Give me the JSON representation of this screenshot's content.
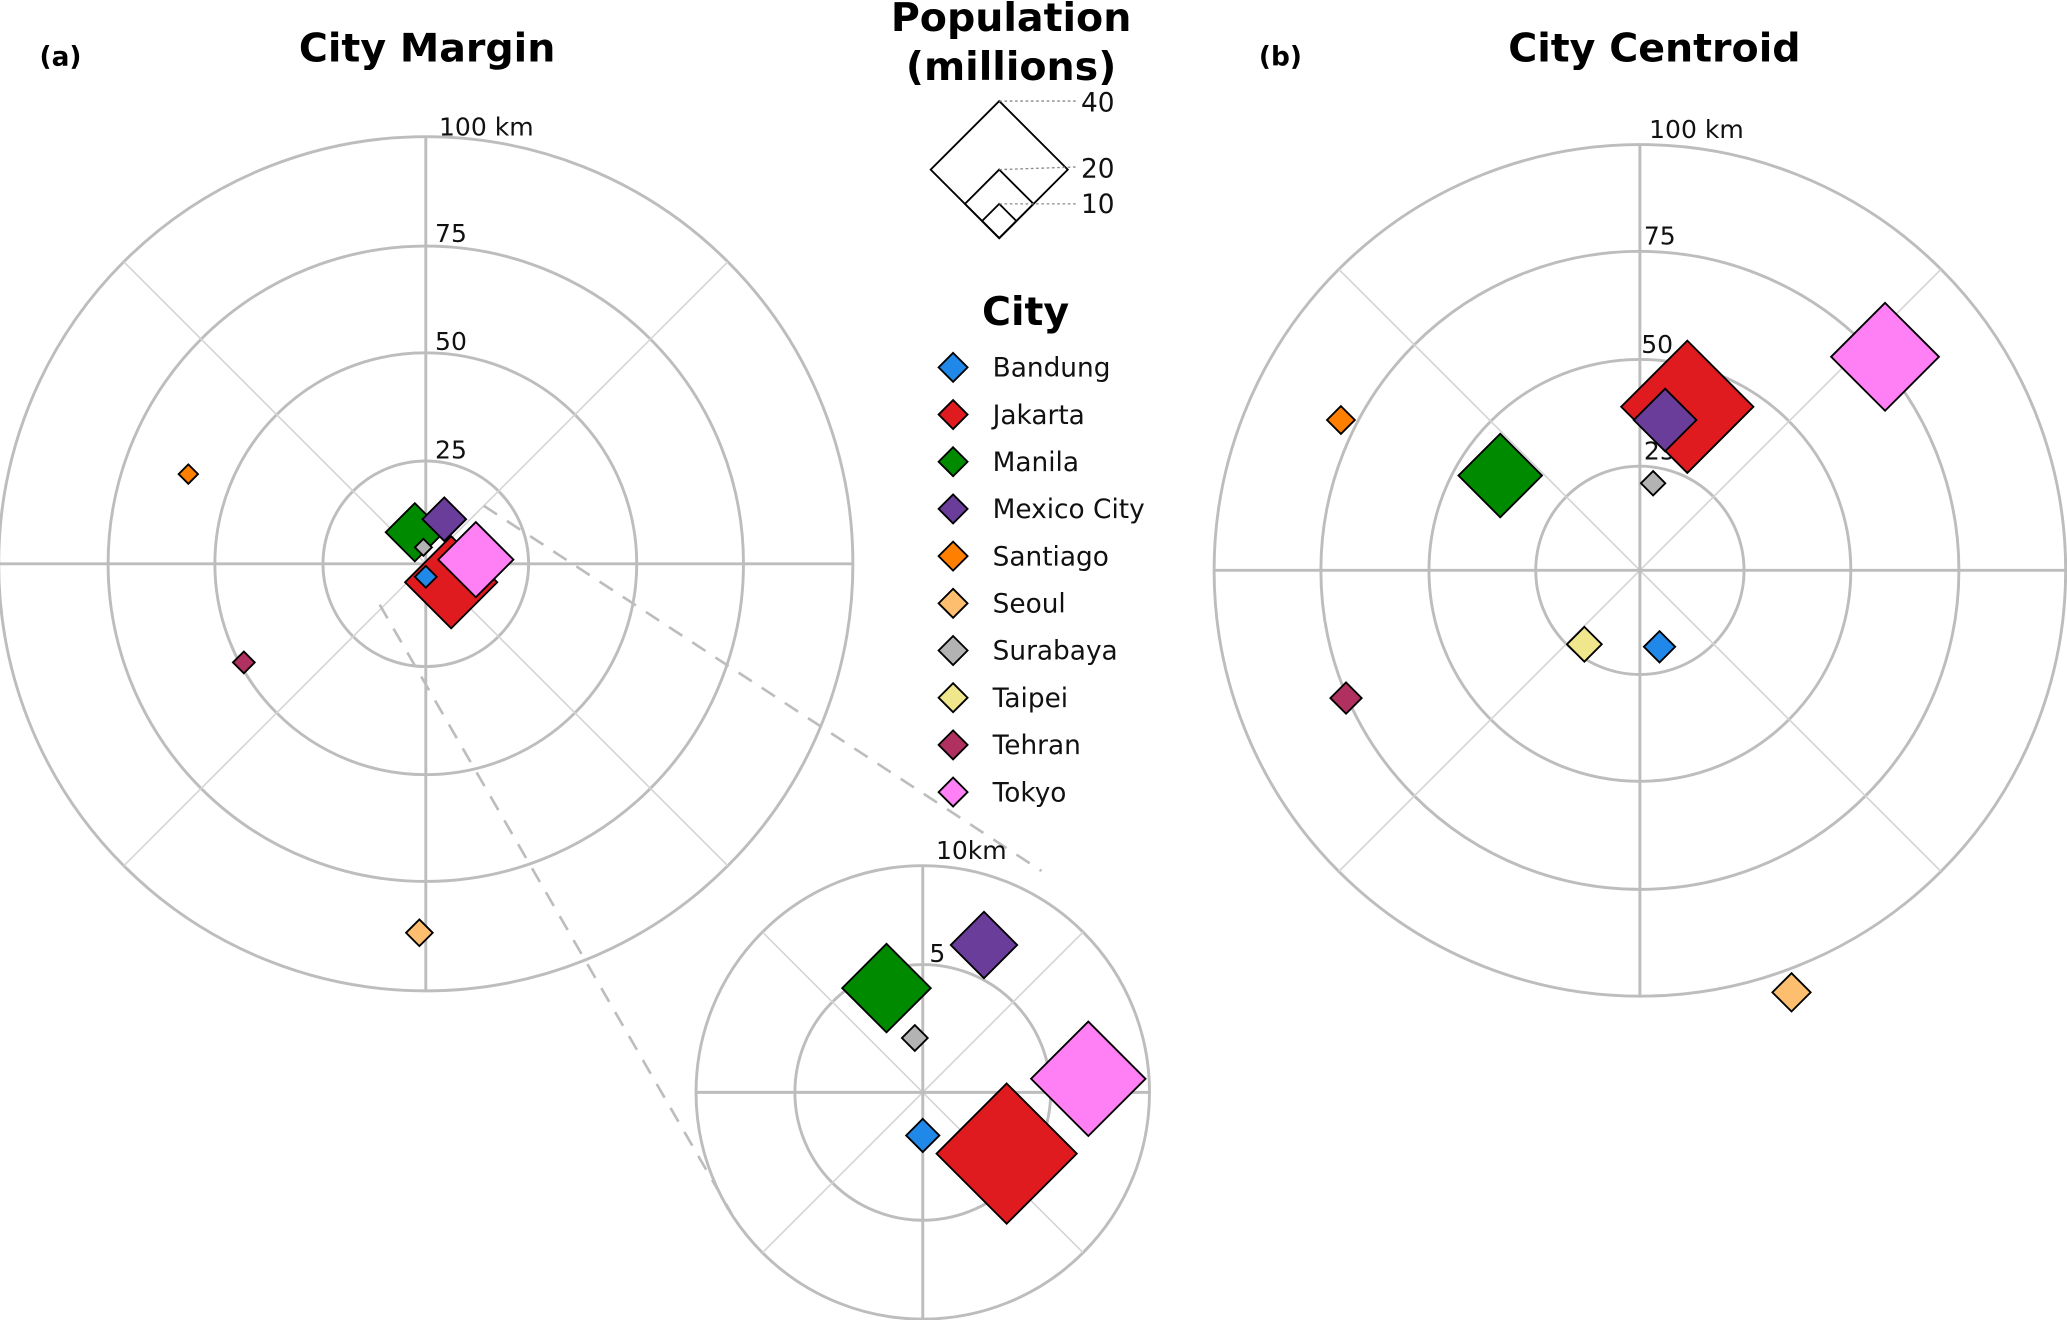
{
  "chart_data": [
    {
      "type": "scatter",
      "panel_label": "(a)",
      "title": "City Margin",
      "coordinates": "polar, offsets in km (east, north)",
      "ring_labels": [
        "100 km",
        "75",
        "50",
        "25"
      ],
      "rings_km": [
        25,
        50,
        75,
        100
      ],
      "inset": {
        "ring_labels": [
          "10km",
          "5"
        ],
        "rings_km": [
          5,
          10
        ]
      },
      "points": [
        {
          "city": "Bandung",
          "east_km": 0.0,
          "north_km": -1.9
        },
        {
          "city": "Jakarta",
          "east_km": 3.7,
          "north_km": -2.7
        },
        {
          "city": "Manila",
          "east_km": -1.6,
          "north_km": 4.6
        },
        {
          "city": "Mexico City",
          "east_km": 2.7,
          "north_km": 6.5
        },
        {
          "city": "Santiago",
          "east_km": -55.6,
          "north_km": 21.0
        },
        {
          "city": "Seoul",
          "east_km": -1.5,
          "north_km": -86.4
        },
        {
          "city": "Surabaya",
          "east_km": -0.35,
          "north_km": 2.4
        },
        {
          "city": "Tehran",
          "east_km": -42.6,
          "north_km": -23.1
        },
        {
          "city": "Tokyo",
          "east_km": 7.3,
          "north_km": 0.6
        }
      ]
    },
    {
      "type": "scatter",
      "panel_label": "(b)",
      "title": "City Centroid",
      "coordinates": "polar, offsets in km (east, north)",
      "ring_labels": [
        "100 km",
        "75",
        "50",
        "25"
      ],
      "rings_km": [
        25,
        50,
        75,
        100
      ],
      "points": [
        {
          "city": "Bandung",
          "east_km": 4.6,
          "north_km": -17.9
        },
        {
          "city": "Jakarta",
          "east_km": 11.1,
          "north_km": 38.3
        },
        {
          "city": "Manila",
          "east_km": -32.7,
          "north_km": 22.2
        },
        {
          "city": "Mexico City",
          "east_km": 5.9,
          "north_km": 35.2
        },
        {
          "city": "Santiago",
          "east_km": -70.0,
          "north_km": 35.2
        },
        {
          "city": "Seoul",
          "east_km": 35.5,
          "north_km": -98.8
        },
        {
          "city": "Surabaya",
          "east_km": 3.1,
          "north_km": 20.4
        },
        {
          "city": "Taipei",
          "east_km": -13.0,
          "north_km": -17.3
        },
        {
          "city": "Tehran",
          "east_km": -68.8,
          "north_km": -29.9
        },
        {
          "city": "Tokyo",
          "east_km": 57.4,
          "north_km": 50.0
        }
      ]
    }
  ],
  "size_legend": {
    "title_line1": "Population",
    "title_line2": "(millions)",
    "values": [
      40,
      20,
      10
    ],
    "labels": [
      "40",
      "20",
      "10"
    ]
  },
  "color_legend": {
    "title": "City",
    "items": [
      {
        "city": "Bandung",
        "color": "#1f88e8",
        "population_millions": 9
      },
      {
        "city": "Jakarta",
        "color": "#e01b1f",
        "population_millions": 38
      },
      {
        "city": "Manila",
        "color": "#008a00",
        "population_millions": 24
      },
      {
        "city": "Mexico City",
        "color": "#6a3d9a",
        "population_millions": 18
      },
      {
        "city": "Santiago",
        "color": "#ff7f00",
        "population_millions": 8
      },
      {
        "city": "Seoul",
        "color": "#fdbf6f",
        "population_millions": 11
      },
      {
        "city": "Surabaya",
        "color": "#b3b3b3",
        "population_millions": 7
      },
      {
        "city": "Taipei",
        "color": "#f0e68c",
        "population_millions": 10
      },
      {
        "city": "Tehran",
        "color": "#b03060",
        "population_millions": 9
      },
      {
        "city": "Tokyo",
        "color": "#ff80f4",
        "population_millions": 31
      }
    ]
  }
}
